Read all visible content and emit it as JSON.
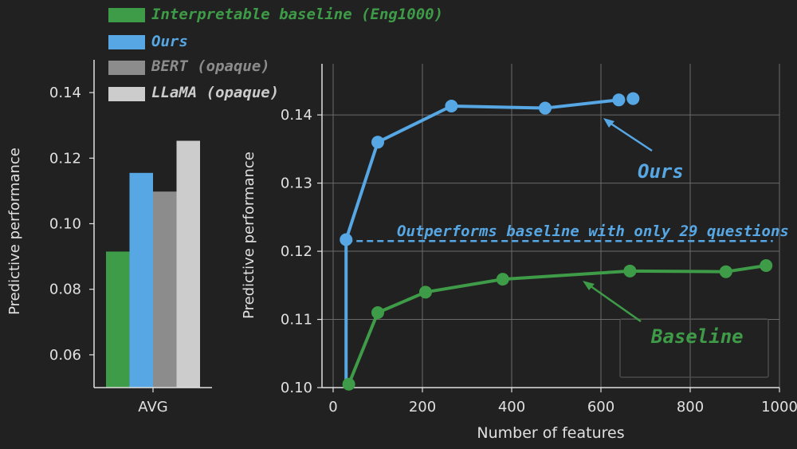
{
  "colors": {
    "background": "#212121",
    "baseline": "#3e9b47",
    "ours": "#56a7e3",
    "bert": "#8c8c8c",
    "llama": "#cccccc",
    "axis": "#e0e0e0",
    "grid": "#6a6a6a"
  },
  "legend": [
    {
      "label": "Interpretable baseline (Eng1000)",
      "color": "#3e9b47"
    },
    {
      "label": "Ours",
      "color": "#56a7e3"
    },
    {
      "label": "BERT (opaque)",
      "color": "#8c8c8c"
    },
    {
      "label": "LLaMA (opaque)",
      "color": "#cccccc"
    }
  ],
  "chart_data": [
    {
      "type": "bar",
      "categories": [
        "AVG"
      ],
      "series": [
        {
          "name": "Interpretable baseline (Eng1000)",
          "values": [
            0.0915
          ]
        },
        {
          "name": "Ours",
          "values": [
            0.1155
          ]
        },
        {
          "name": "BERT (opaque)",
          "values": [
            0.1098
          ]
        },
        {
          "name": "LLaMA (opaque)",
          "values": [
            0.1253
          ]
        }
      ],
      "xlabel": "",
      "ylabel": "Predictive performance",
      "ylim": [
        0.05,
        0.15
      ],
      "yticks": [
        0.06,
        0.08,
        0.1,
        0.12,
        0.14
      ],
      "ytick_labels": [
        "0.06",
        "0.08",
        "0.10",
        "0.12",
        "0.14"
      ],
      "grid": false
    },
    {
      "type": "line",
      "xlabel": "Number of features",
      "ylabel": "Predictive performance",
      "xlim": [
        -25,
        1000
      ],
      "ylim": [
        0.1,
        0.1475
      ],
      "xticks": [
        0,
        200,
        400,
        600,
        800,
        1000
      ],
      "xtick_labels": [
        "0",
        "200",
        "400",
        "600",
        "800",
        "1000"
      ],
      "yticks": [
        0.1,
        0.11,
        0.12,
        0.13,
        0.14
      ],
      "ytick_labels": [
        "0.10",
        "0.11",
        "0.12",
        "0.13",
        "0.14"
      ],
      "grid": true,
      "series": [
        {
          "name": "Ours",
          "x": [
            29,
            29,
            100,
            265,
            475,
            640
          ],
          "y": [
            0.1005,
            0.1217,
            0.136,
            0.1413,
            0.141,
            0.1422
          ]
        },
        {
          "name": "Baseline",
          "x": [
            35,
            100,
            207,
            380,
            665,
            880,
            970
          ],
          "y": [
            0.1005,
            0.111,
            0.114,
            0.1159,
            0.1171,
            0.117,
            0.1179
          ]
        }
      ],
      "extra_points": [
        {
          "series": "Ours",
          "x": 672,
          "y": 0.1424
        }
      ],
      "threshold_line": {
        "y": 0.1215,
        "x_start": 29,
        "x_end": 985
      },
      "annotations": [
        {
          "text": "Outperforms baseline with only 29 questions",
          "color": "#56a7e3"
        },
        {
          "text": "Ours",
          "color": "#56a7e3"
        },
        {
          "text": "Baseline",
          "color": "#3e9b47"
        }
      ]
    }
  ]
}
